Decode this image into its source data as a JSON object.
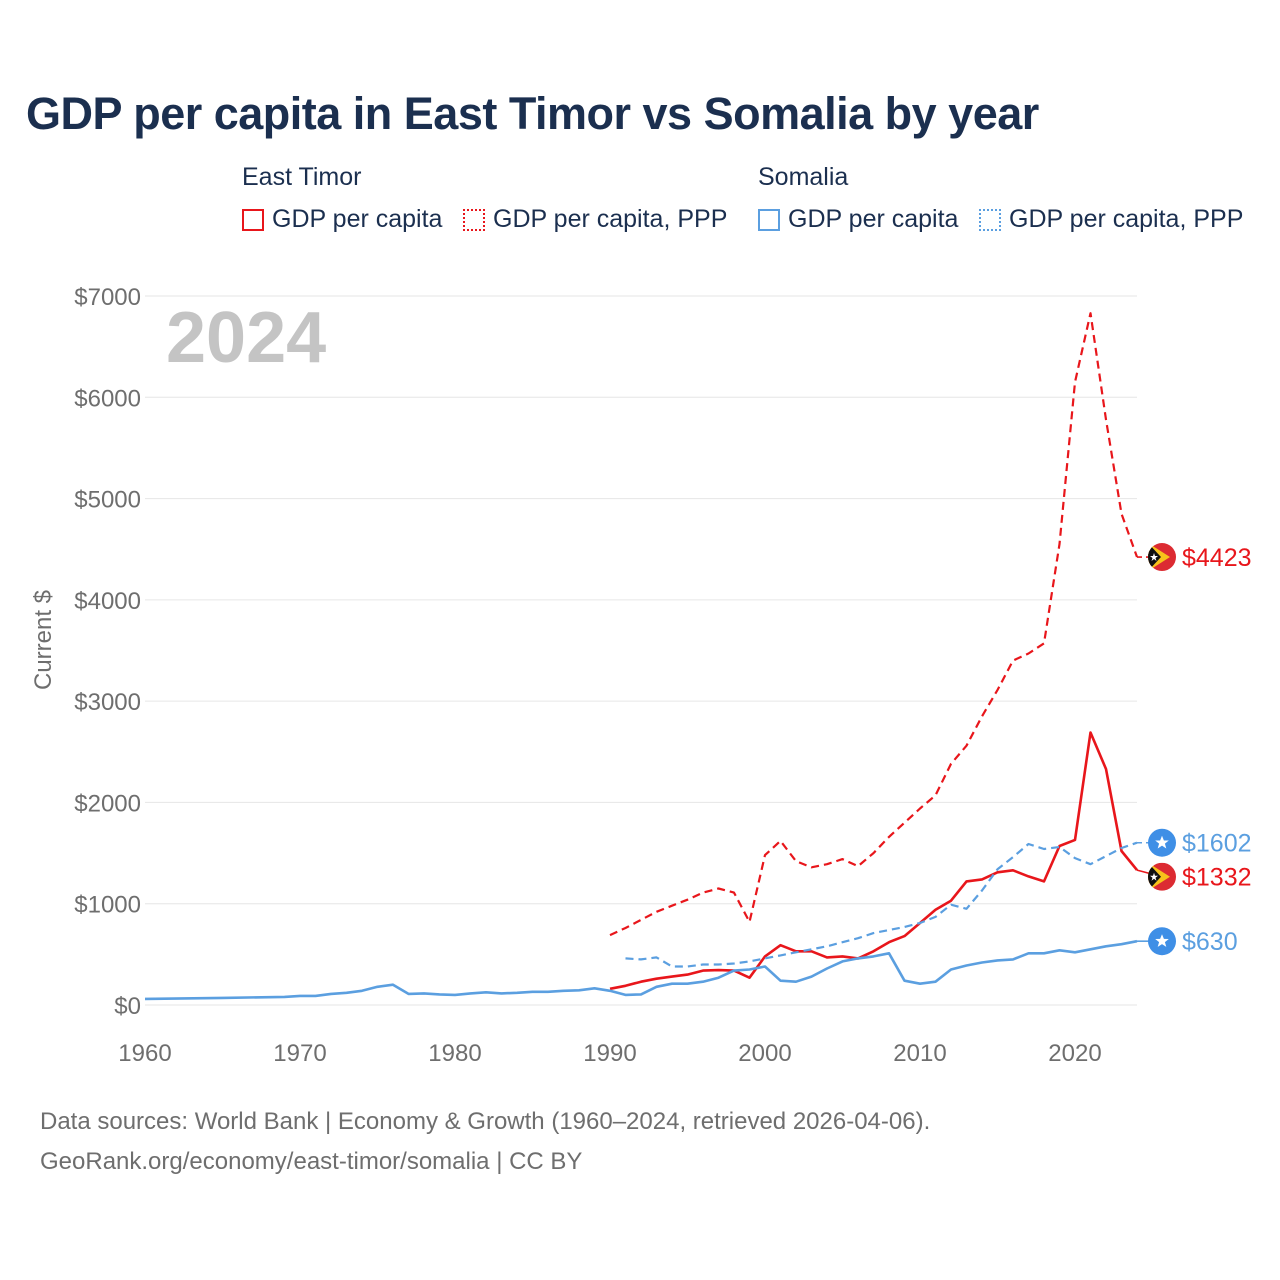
{
  "title": "GDP per capita in East Timor vs Somalia by year",
  "legend": {
    "groups": [
      {
        "country": "East Timor",
        "color": "#e8161b",
        "items": [
          {
            "label": "GDP per capita",
            "style": "solid"
          },
          {
            "label": "GDP per capita, PPP",
            "style": "dotted"
          }
        ]
      },
      {
        "country": "Somalia",
        "color": "#5b9fe0",
        "items": [
          {
            "label": "GDP per capita",
            "style": "solid"
          },
          {
            "label": "GDP per capita, PPP",
            "style": "dotted"
          }
        ]
      }
    ]
  },
  "footer": {
    "line1": "Data sources: World Bank | Economy & Growth (1960–2024, retrieved 2026-04-06).",
    "line2": "GeoRank.org/economy/east-timor/somalia | CC BY"
  },
  "chart_data": {
    "type": "line",
    "title": "GDP per capita in East Timor vs Somalia by year",
    "xlabel": "",
    "ylabel": "Current $",
    "year_label": "2024",
    "xlim": [
      1960,
      2024
    ],
    "ylim": [
      0,
      7000
    ],
    "x_ticks": [
      1960,
      1970,
      1980,
      1990,
      2000,
      2010,
      2020
    ],
    "y_ticks": [
      0,
      1000,
      2000,
      3000,
      4000,
      5000,
      6000,
      7000
    ],
    "y_tick_labels": [
      "$0",
      "$1000",
      "$2000",
      "$3000",
      "$4000",
      "$5000",
      "$6000",
      "$7000"
    ],
    "grid": true,
    "series": [
      {
        "name": "East Timor GDP per capita, PPP",
        "country": "East Timor",
        "color": "#e8161b",
        "dash": "dashed",
        "end_label": "$4423",
        "points": [
          [
            1990,
            690
          ],
          [
            1991,
            760
          ],
          [
            1992,
            840
          ],
          [
            1993,
            920
          ],
          [
            1994,
            980
          ],
          [
            1995,
            1040
          ],
          [
            1996,
            1110
          ],
          [
            1997,
            1150
          ],
          [
            1998,
            1110
          ],
          [
            1999,
            820
          ],
          [
            2000,
            1480
          ],
          [
            2001,
            1620
          ],
          [
            2002,
            1420
          ],
          [
            2003,
            1360
          ],
          [
            2004,
            1390
          ],
          [
            2005,
            1440
          ],
          [
            2006,
            1370
          ],
          [
            2007,
            1500
          ],
          [
            2008,
            1660
          ],
          [
            2009,
            1800
          ],
          [
            2010,
            1940
          ],
          [
            2011,
            2070
          ],
          [
            2012,
            2380
          ],
          [
            2013,
            2560
          ],
          [
            2014,
            2850
          ],
          [
            2015,
            3110
          ],
          [
            2016,
            3400
          ],
          [
            2017,
            3470
          ],
          [
            2018,
            3570
          ],
          [
            2019,
            4550
          ],
          [
            2020,
            6150
          ],
          [
            2021,
            6830
          ],
          [
            2022,
            5780
          ],
          [
            2023,
            4850
          ],
          [
            2024,
            4423
          ]
        ]
      },
      {
        "name": "East Timor GDP per capita",
        "country": "East Timor",
        "color": "#e8161b",
        "dash": "solid",
        "end_label": "$1332",
        "points": [
          [
            1990,
            160
          ],
          [
            1991,
            190
          ],
          [
            1992,
            230
          ],
          [
            1993,
            260
          ],
          [
            1994,
            280
          ],
          [
            1995,
            300
          ],
          [
            1996,
            340
          ],
          [
            1997,
            345
          ],
          [
            1998,
            340
          ],
          [
            1999,
            270
          ],
          [
            2000,
            480
          ],
          [
            2001,
            590
          ],
          [
            2002,
            530
          ],
          [
            2003,
            530
          ],
          [
            2004,
            470
          ],
          [
            2005,
            480
          ],
          [
            2006,
            460
          ],
          [
            2007,
            530
          ],
          [
            2008,
            620
          ],
          [
            2009,
            680
          ],
          [
            2010,
            810
          ],
          [
            2011,
            940
          ],
          [
            2012,
            1030
          ],
          [
            2013,
            1220
          ],
          [
            2014,
            1240
          ],
          [
            2015,
            1310
          ],
          [
            2016,
            1330
          ],
          [
            2017,
            1270
          ],
          [
            2018,
            1220
          ],
          [
            2019,
            1570
          ],
          [
            2020,
            1630
          ],
          [
            2021,
            2690
          ],
          [
            2022,
            2330
          ],
          [
            2023,
            1520
          ],
          [
            2024,
            1332
          ]
        ]
      },
      {
        "name": "Somalia GDP per capita, PPP",
        "country": "Somalia",
        "color": "#5b9fe0",
        "dash": "dashed",
        "end_label": "$1602",
        "points": [
          [
            1991,
            460
          ],
          [
            1992,
            450
          ],
          [
            1993,
            470
          ],
          [
            1994,
            380
          ],
          [
            1995,
            380
          ],
          [
            1996,
            400
          ],
          [
            1997,
            400
          ],
          [
            1998,
            410
          ],
          [
            1999,
            430
          ],
          [
            2000,
            460
          ],
          [
            2001,
            490
          ],
          [
            2002,
            520
          ],
          [
            2003,
            550
          ],
          [
            2004,
            580
          ],
          [
            2005,
            620
          ],
          [
            2006,
            660
          ],
          [
            2007,
            710
          ],
          [
            2008,
            740
          ],
          [
            2009,
            770
          ],
          [
            2010,
            810
          ],
          [
            2011,
            870
          ],
          [
            2012,
            990
          ],
          [
            2013,
            950
          ],
          [
            2014,
            1130
          ],
          [
            2015,
            1340
          ],
          [
            2016,
            1460
          ],
          [
            2017,
            1590
          ],
          [
            2018,
            1540
          ],
          [
            2019,
            1560
          ],
          [
            2020,
            1450
          ],
          [
            2021,
            1390
          ],
          [
            2022,
            1470
          ],
          [
            2023,
            1550
          ],
          [
            2024,
            1602
          ]
        ]
      },
      {
        "name": "Somalia GDP per capita",
        "country": "Somalia",
        "color": "#5b9fe0",
        "dash": "solid",
        "end_label": "$630",
        "points": [
          [
            1960,
            60
          ],
          [
            1965,
            70
          ],
          [
            1969,
            80
          ],
          [
            1970,
            90
          ],
          [
            1971,
            90
          ],
          [
            1972,
            110
          ],
          [
            1973,
            120
          ],
          [
            1974,
            140
          ],
          [
            1975,
            180
          ],
          [
            1976,
            200
          ],
          [
            1977,
            110
          ],
          [
            1978,
            115
          ],
          [
            1979,
            105
          ],
          [
            1980,
            100
          ],
          [
            1981,
            115
          ],
          [
            1982,
            125
          ],
          [
            1983,
            115
          ],
          [
            1984,
            120
          ],
          [
            1985,
            130
          ],
          [
            1986,
            130
          ],
          [
            1987,
            140
          ],
          [
            1988,
            145
          ],
          [
            1989,
            165
          ],
          [
            1990,
            140
          ],
          [
            1991,
            100
          ],
          [
            1992,
            105
          ],
          [
            1993,
            180
          ],
          [
            1994,
            210
          ],
          [
            1995,
            210
          ],
          [
            1996,
            230
          ],
          [
            1997,
            270
          ],
          [
            1998,
            340
          ],
          [
            1999,
            350
          ],
          [
            2000,
            380
          ],
          [
            2001,
            240
          ],
          [
            2002,
            230
          ],
          [
            2003,
            280
          ],
          [
            2004,
            360
          ],
          [
            2005,
            430
          ],
          [
            2006,
            460
          ],
          [
            2007,
            480
          ],
          [
            2008,
            510
          ],
          [
            2009,
            240
          ],
          [
            2010,
            210
          ],
          [
            2011,
            230
          ],
          [
            2012,
            350
          ],
          [
            2013,
            390
          ],
          [
            2014,
            420
          ],
          [
            2015,
            440
          ],
          [
            2016,
            450
          ],
          [
            2017,
            510
          ],
          [
            2018,
            510
          ],
          [
            2019,
            540
          ],
          [
            2020,
            520
          ],
          [
            2021,
            550
          ],
          [
            2022,
            580
          ],
          [
            2023,
            600
          ],
          [
            2024,
            630
          ]
        ]
      }
    ]
  }
}
